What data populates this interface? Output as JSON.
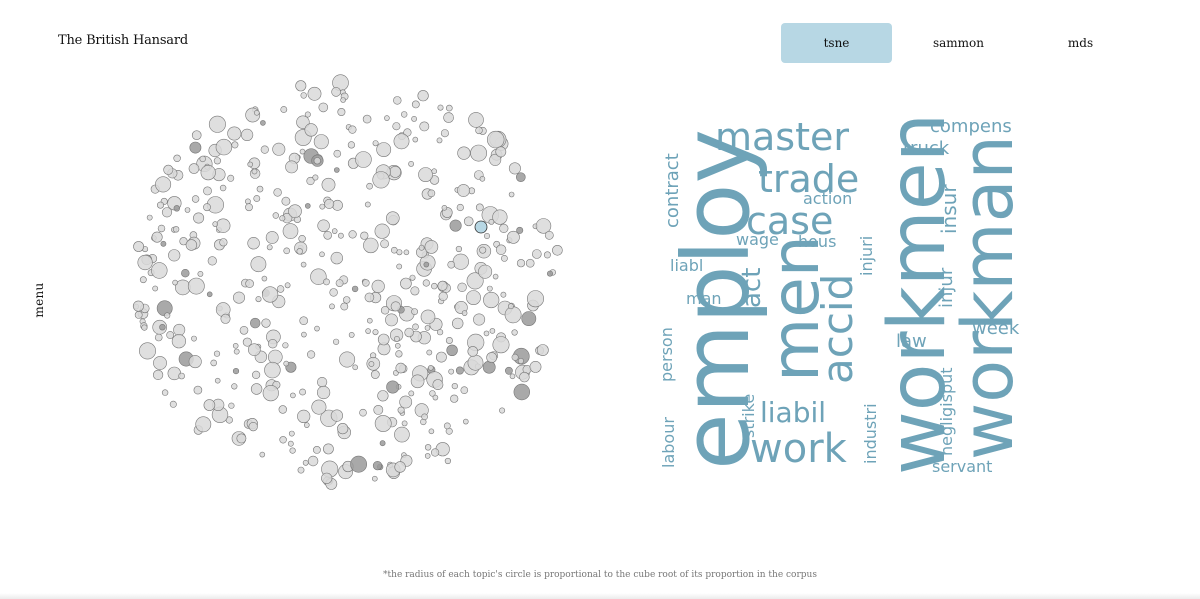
{
  "header": {
    "title": "The British Hansard"
  },
  "tabs": [
    {
      "label": "tsne",
      "active": true
    },
    {
      "label": "sammon",
      "active": false
    },
    {
      "label": "mds",
      "active": false
    }
  ],
  "sidebar": {
    "menu_label": "menu"
  },
  "footnote": "*the radius of each topic's circle is proportional to the cube root of its proportion in the corpus",
  "colors": {
    "accent": "#b7d7e4",
    "word": "#6ea3b8",
    "circle_fill": "#d9d9d9",
    "circle_stroke": "#777777",
    "highlight_fill": "#b7d7e4"
  },
  "wordcloud": {
    "words": [
      "employ",
      "workmen",
      "workman",
      "men",
      "master",
      "trade",
      "case",
      "accid",
      "work",
      "liabil",
      "act",
      "contract",
      "compens",
      "truck",
      "action",
      "injuri",
      "insur",
      "injur",
      "wage",
      "hous",
      "liabl",
      "man",
      "negligisput",
      "law",
      "week",
      "person",
      "labour",
      "strike",
      "industri",
      "servant"
    ]
  }
}
